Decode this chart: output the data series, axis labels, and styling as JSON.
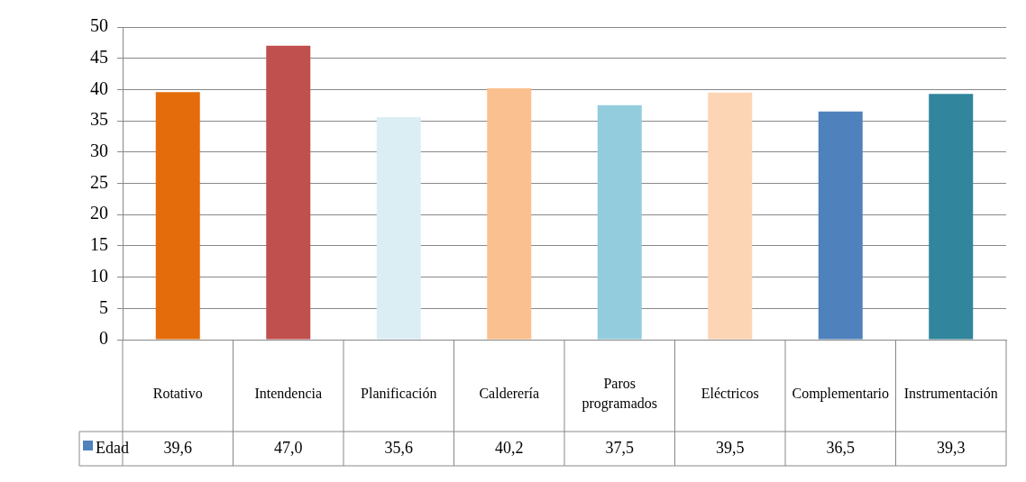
{
  "chart_data": {
    "type": "bar",
    "categories": [
      "Rotativo",
      "Intendencia",
      "Planificación",
      "Calderería",
      "Paros programados",
      "Eléctricos",
      "Complementario",
      "Instrumentación"
    ],
    "series": [
      {
        "name": "Edad",
        "color": "#4f81bd",
        "colors": [
          "#e46c0a",
          "#c0504d",
          "#dbeef4",
          "#fac08f",
          "#93cddd",
          "#fcd5b5",
          "#4f81bd",
          "#31859c"
        ],
        "values": [
          39.6,
          47.0,
          35.6,
          40.2,
          37.5,
          39.5,
          36.5,
          39.3
        ],
        "value_labels": [
          "39,6",
          "47,0",
          "35,6",
          "40,2",
          "37,5",
          "39,5",
          "36,5",
          "39,3"
        ]
      }
    ],
    "ylim": [
      0,
      50
    ],
    "yticks": [
      0,
      5,
      10,
      15,
      20,
      25,
      30,
      35,
      40,
      45,
      50
    ],
    "grid": "y",
    "legend": "bottom"
  }
}
